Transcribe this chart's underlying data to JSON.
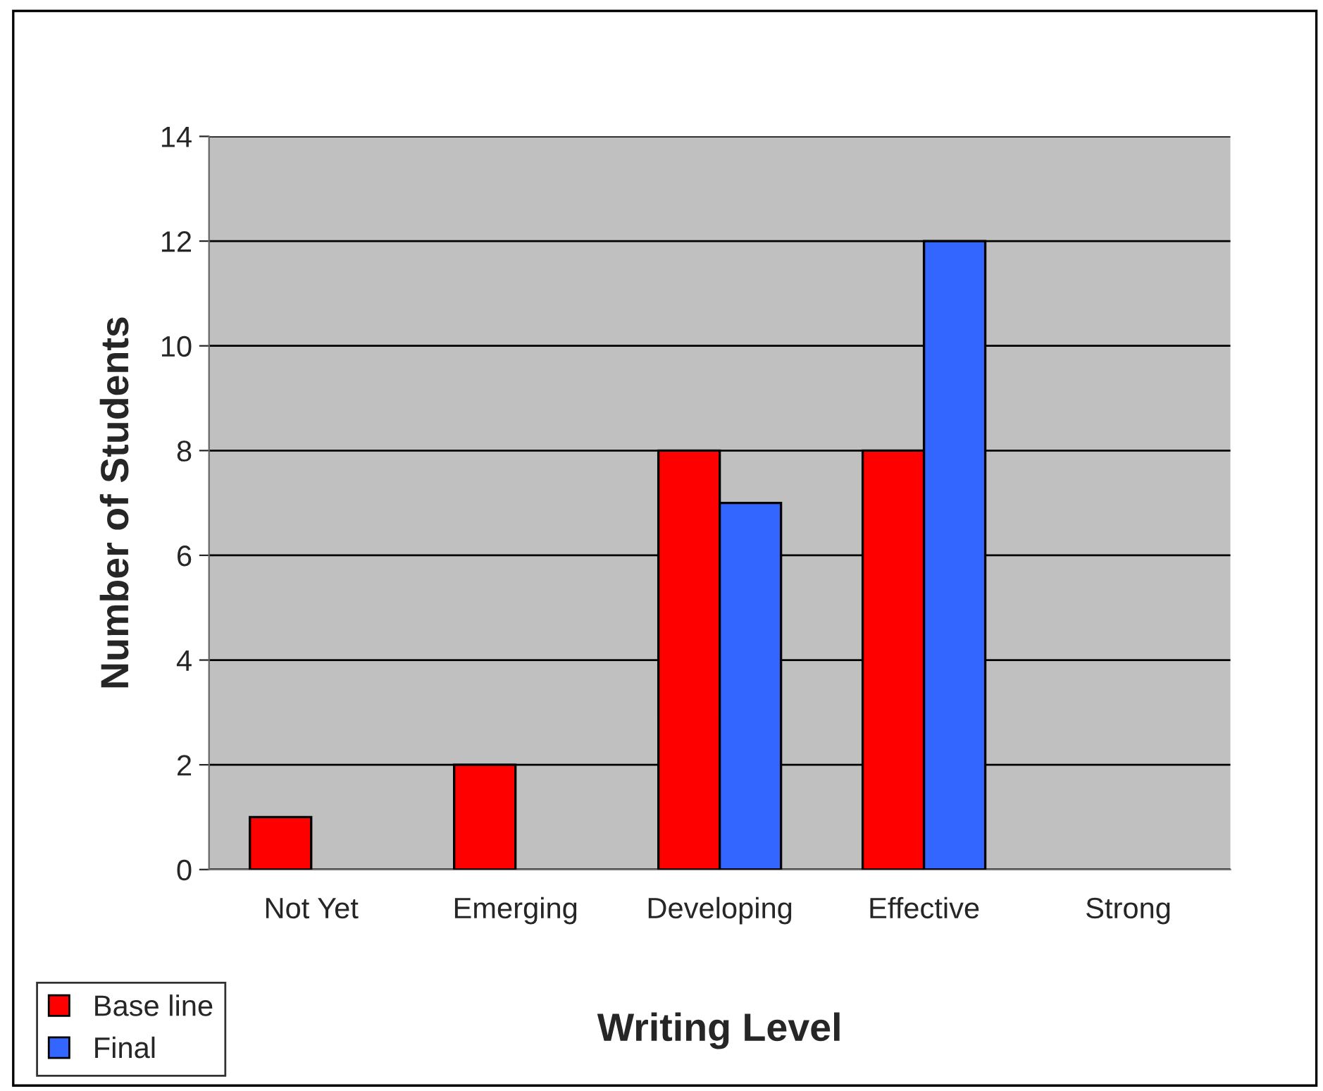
{
  "chart_data": {
    "type": "bar",
    "xlabel": "Writing Level",
    "ylabel": "Number of Students",
    "categories": [
      "Not Yet",
      "Emerging",
      "Developing",
      "Effective",
      "Strong"
    ],
    "series": [
      {
        "name": "Base line",
        "color": "#ff0000",
        "values": [
          1,
          2,
          8,
          8,
          0
        ]
      },
      {
        "name": "Final",
        "color": "#3366ff",
        "values": [
          0,
          0,
          7,
          12,
          0
        ]
      }
    ],
    "ylim": [
      0,
      14
    ],
    "yticks": [
      0,
      2,
      4,
      6,
      8,
      10,
      12,
      14
    ],
    "grid": "y",
    "legend": "bottom left"
  }
}
